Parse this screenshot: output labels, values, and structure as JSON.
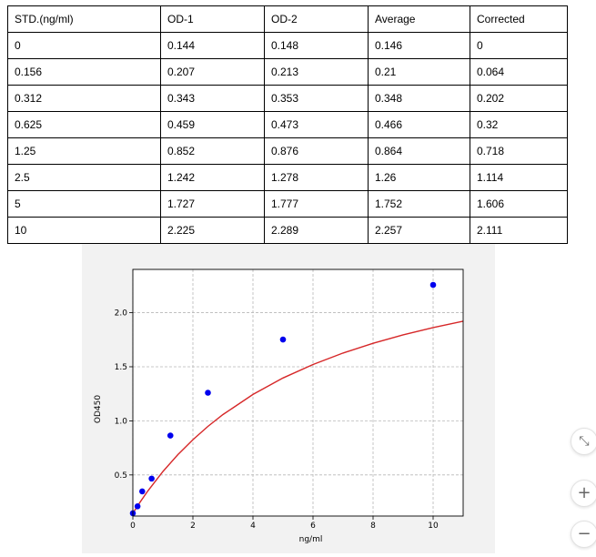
{
  "table": {
    "headers": [
      "STD.(ng/ml)",
      "OD-1",
      "OD-2",
      "Average",
      "Corrected"
    ],
    "rows": [
      [
        "0",
        "0.144",
        "0.148",
        "0.146",
        "0"
      ],
      [
        "0.156",
        "0.207",
        "0.213",
        "0.21",
        "0.064"
      ],
      [
        "0.312",
        "0.343",
        "0.353",
        "0.348",
        "0.202"
      ],
      [
        "0.625",
        "0.459",
        "0.473",
        "0.466",
        "0.32"
      ],
      [
        "1.25",
        "0.852",
        "0.876",
        "0.864",
        "0.718"
      ],
      [
        "2.5",
        "1.242",
        "1.278",
        "1.26",
        "1.114"
      ],
      [
        "5",
        "1.727",
        "1.777",
        "1.752",
        "1.606"
      ],
      [
        "10",
        "2.225",
        "2.289",
        "2.257",
        "2.111"
      ]
    ]
  },
  "chart_data": {
    "type": "scatter",
    "xlabel": "ng/ml",
    "ylabel": "OD450",
    "xlim": [
      0,
      11
    ],
    "ylim": [
      0.12,
      2.4
    ],
    "xticks": [
      0,
      2,
      4,
      6,
      8,
      10
    ],
    "yticks": [
      0.5,
      1.0,
      1.5,
      2.0
    ],
    "ytick_labels": [
      "0.5",
      "1.0",
      "1.5",
      "2.0"
    ],
    "grid": true,
    "points": {
      "x": [
        0,
        0.156,
        0.312,
        0.625,
        1.25,
        2.5,
        5,
        10
      ],
      "y": [
        0.146,
        0.21,
        0.348,
        0.466,
        0.864,
        1.26,
        1.752,
        2.257
      ],
      "color": "#0000ee"
    },
    "fit_curve": {
      "x": [
        0,
        0.25,
        0.5,
        1,
        1.5,
        2,
        2.5,
        3,
        4,
        5,
        6,
        7,
        8,
        9,
        10,
        11
      ],
      "y": [
        0.146,
        0.253,
        0.352,
        0.531,
        0.688,
        0.826,
        0.949,
        1.058,
        1.244,
        1.396,
        1.521,
        1.627,
        1.717,
        1.795,
        1.862,
        1.921
      ],
      "color": "#d62728"
    }
  },
  "zoom_controls": {
    "fit_symbol": "⤡",
    "zoom_in_symbol": "+",
    "zoom_out_symbol": "−"
  }
}
